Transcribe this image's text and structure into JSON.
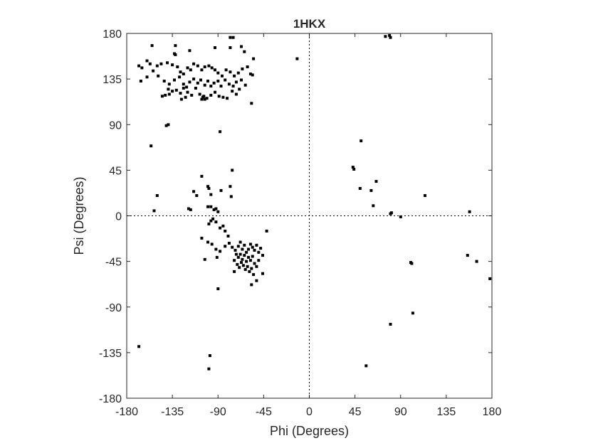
{
  "chart_data": {
    "type": "scatter",
    "title": "1HKX",
    "xlabel": "Phi (Degrees)",
    "ylabel": "Psi (Degrees)",
    "xlim": [
      -180,
      180
    ],
    "ylim": [
      -180,
      180
    ],
    "xticks": [
      -180,
      -135,
      -90,
      -45,
      0,
      45,
      90,
      135,
      180
    ],
    "yticks": [
      -180,
      -135,
      -90,
      -45,
      0,
      45,
      90,
      135,
      180
    ],
    "xtick_labels": [
      "-180",
      "-135",
      "-90",
      "-45",
      "0",
      "45",
      "90",
      "135",
      "180"
    ],
    "ytick_labels": [
      "-180",
      "-135",
      "-90",
      "-45",
      "0",
      "45",
      "90",
      "135",
      "180"
    ],
    "zero_lines": true,
    "grid": false,
    "marker_color": "#000000",
    "points": [
      [
        -155,
        168
      ],
      [
        -132,
        168
      ],
      [
        -133,
        160
      ],
      [
        -132,
        159
      ],
      [
        -118,
        163
      ],
      [
        -93,
        166
      ],
      [
        -78,
        166
      ],
      [
        -64,
        162
      ],
      [
        -55,
        155
      ],
      [
        -12,
        155
      ],
      [
        -168,
        148
      ],
      [
        -165,
        146
      ],
      [
        -160,
        153
      ],
      [
        -157,
        150
      ],
      [
        -150,
        148
      ],
      [
        -146,
        150
      ],
      [
        -140,
        151
      ],
      [
        -135,
        149
      ],
      [
        -130,
        147
      ],
      [
        -127,
        142
      ],
      [
        -124,
        140
      ],
      [
        -120,
        146
      ],
      [
        -117,
        144
      ],
      [
        -114,
        150
      ],
      [
        -110,
        148
      ],
      [
        -106,
        144
      ],
      [
        -103,
        147
      ],
      [
        -99,
        148
      ],
      [
        -96,
        146
      ],
      [
        -93,
        144
      ],
      [
        -90,
        141
      ],
      [
        -86,
        138
      ],
      [
        -82,
        144
      ],
      [
        -78,
        142
      ],
      [
        -74,
        138
      ],
      [
        -70,
        141
      ],
      [
        -66,
        145
      ],
      [
        -61,
        147
      ],
      [
        -58,
        140
      ],
      [
        -56,
        139
      ],
      [
        -166,
        133
      ],
      [
        -160,
        137
      ],
      [
        -154,
        143
      ],
      [
        -149,
        138
      ],
      [
        -143,
        133
      ],
      [
        -138,
        130
      ],
      [
        -133,
        134
      ],
      [
        -128,
        137
      ],
      [
        -124,
        130
      ],
      [
        -121,
        127
      ],
      [
        -118,
        132
      ],
      [
        -114,
        135
      ],
      [
        -110,
        131
      ],
      [
        -107,
        134
      ],
      [
        -103,
        129
      ],
      [
        -100,
        133
      ],
      [
        -97,
        128
      ],
      [
        -94,
        131
      ],
      [
        -90,
        133
      ],
      [
        -87,
        128
      ],
      [
        -83,
        134
      ],
      [
        -79,
        130
      ],
      [
        -75,
        128
      ],
      [
        -72,
        132
      ],
      [
        -67,
        134
      ],
      [
        -63,
        129
      ],
      [
        -139,
        125
      ],
      [
        -135,
        123
      ],
      [
        -131,
        124
      ],
      [
        -127,
        121
      ],
      [
        -124,
        126
      ],
      [
        -120,
        122
      ],
      [
        -116,
        119
      ],
      [
        -112,
        126
      ],
      [
        -108,
        120
      ],
      [
        -105,
        117
      ],
      [
        -103,
        115
      ],
      [
        -101,
        116
      ],
      [
        -97,
        119
      ],
      [
        -93,
        122
      ],
      [
        -89,
        118
      ],
      [
        -85,
        117
      ],
      [
        -81,
        116
      ],
      [
        -76,
        123
      ],
      [
        -72,
        120
      ],
      [
        -69,
        125
      ],
      [
        -145,
        118
      ],
      [
        -142,
        119
      ],
      [
        -138,
        120
      ],
      [
        -126,
        115
      ],
      [
        -122,
        117
      ],
      [
        -106,
        115
      ],
      [
        -104,
        118
      ],
      [
        -57,
        111
      ],
      [
        -141,
        89
      ],
      [
        -139,
        90
      ],
      [
        -88,
        83
      ],
      [
        -78,
        176
      ],
      [
        -75,
        176
      ],
      [
        -67,
        167
      ],
      [
        -156,
        69
      ],
      [
        -106,
        39
      ],
      [
        -76,
        45
      ],
      [
        -111,
        20
      ],
      [
        -114,
        24
      ],
      [
        -150,
        20
      ],
      [
        -153,
        5
      ],
      [
        -100,
        29
      ],
      [
        -99,
        27
      ],
      [
        -97,
        21
      ],
      [
        -87,
        25
      ],
      [
        -78,
        29
      ],
      [
        -77,
        19
      ],
      [
        -117,
        6
      ],
      [
        -119,
        7
      ],
      [
        -100,
        9
      ],
      [
        -97,
        9
      ],
      [
        -94,
        6
      ],
      [
        -92,
        7
      ],
      [
        -90,
        4
      ],
      [
        -99,
        -8
      ],
      [
        -97,
        -5
      ],
      [
        -95,
        -3
      ],
      [
        -92,
        -6
      ],
      [
        -88,
        -12
      ],
      [
        -85,
        -10
      ],
      [
        -83,
        -15
      ],
      [
        -80,
        -20
      ],
      [
        -42,
        -15
      ],
      [
        -106,
        -22
      ],
      [
        -100,
        -26
      ],
      [
        -96,
        -28
      ],
      [
        -92,
        -33
      ],
      [
        -88,
        -35
      ],
      [
        -83,
        -30
      ],
      [
        -79,
        -27
      ],
      [
        -76,
        -31
      ],
      [
        -73,
        -34
      ],
      [
        -70,
        -30
      ],
      [
        -68,
        -26
      ],
      [
        -66,
        -33
      ],
      [
        -64,
        -29
      ],
      [
        -62,
        -36
      ],
      [
        -60,
        -33
      ],
      [
        -58,
        -28
      ],
      [
        -56,
        -31
      ],
      [
        -54,
        -34
      ],
      [
        -52,
        -29
      ],
      [
        -50,
        -36
      ],
      [
        -48,
        -32
      ],
      [
        -46,
        -39
      ],
      [
        -72,
        -38
      ],
      [
        -70,
        -41
      ],
      [
        -68,
        -38
      ],
      [
        -66,
        -43
      ],
      [
        -64,
        -39
      ],
      [
        -62,
        -45
      ],
      [
        -60,
        -41
      ],
      [
        -58,
        -44
      ],
      [
        -56,
        -40
      ],
      [
        -54,
        -47
      ],
      [
        -52,
        -50
      ],
      [
        -50,
        -44
      ],
      [
        -74,
        -44
      ],
      [
        -71,
        -48
      ],
      [
        -69,
        -51
      ],
      [
        -67,
        -46
      ],
      [
        -65,
        -49
      ],
      [
        -63,
        -53
      ],
      [
        -61,
        -50
      ],
      [
        -59,
        -55
      ],
      [
        -57,
        -52
      ],
      [
        -55,
        -58
      ],
      [
        -46,
        -57
      ],
      [
        -74,
        -55
      ],
      [
        -103,
        -43
      ],
      [
        -91,
        -41
      ],
      [
        -90,
        -72
      ],
      [
        -57,
        -68
      ],
      [
        -52,
        -64
      ],
      [
        -168,
        -129
      ],
      [
        -98,
        -138
      ],
      [
        -99,
        -151
      ],
      [
        43,
        48
      ],
      [
        44,
        46
      ],
      [
        51,
        74
      ],
      [
        66,
        34
      ],
      [
        50,
        27
      ],
      [
        61,
        25
      ],
      [
        63,
        10
      ],
      [
        80,
        -107
      ],
      [
        81,
        3
      ],
      [
        80,
        2
      ],
      [
        90,
        -1
      ],
      [
        75,
        177
      ],
      [
        79,
        178
      ],
      [
        80,
        176
      ],
      [
        114,
        20
      ],
      [
        158,
        4
      ],
      [
        100,
        -46
      ],
      [
        101,
        -47
      ],
      [
        102,
        -96
      ],
      [
        156,
        -39
      ],
      [
        165,
        -45
      ],
      [
        178,
        -62
      ],
      [
        56,
        -148
      ]
    ]
  }
}
